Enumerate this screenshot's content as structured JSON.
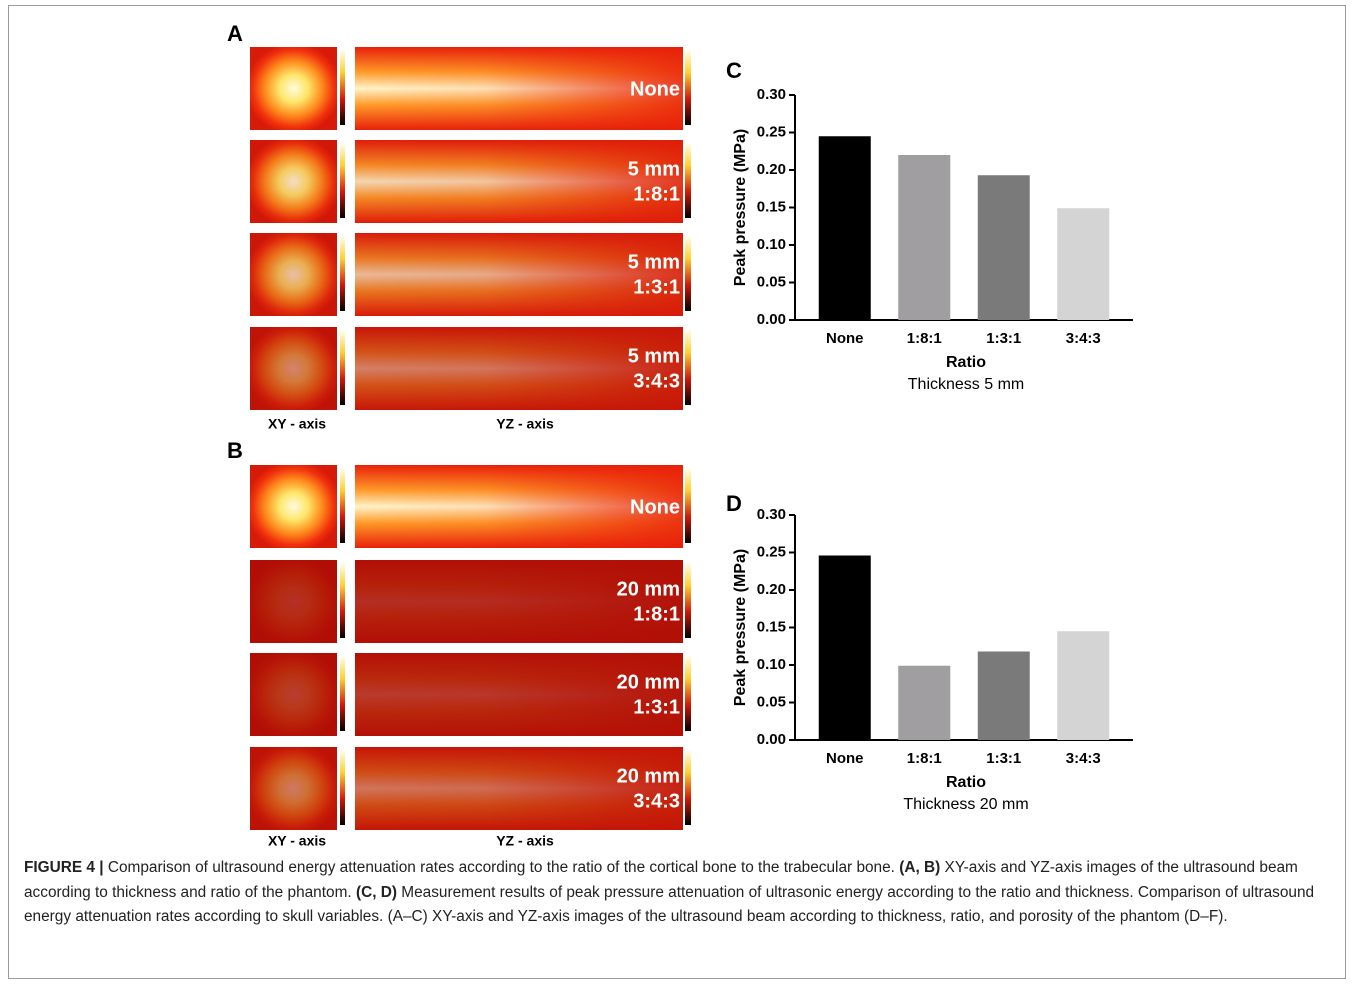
{
  "panels": {
    "A": {
      "letter": "A",
      "rows": [
        [
          "None"
        ],
        [
          "5 mm",
          "1:8:1"
        ],
        [
          "5 mm",
          "1:3:1"
        ],
        [
          "5 mm",
          "3:4:3"
        ]
      ],
      "xy_label": "XY - axis",
      "yz_label": "YZ - axis"
    },
    "B": {
      "letter": "B",
      "rows": [
        [
          "None"
        ],
        [
          "20 mm",
          "1:8:1"
        ],
        [
          "20 mm",
          "1:3:1"
        ],
        [
          "20 mm",
          "3:4:3"
        ]
      ],
      "xy_label": "XY - axis",
      "yz_label": "YZ - axis"
    }
  },
  "chart_data": [
    {
      "type": "bar",
      "panel": "C",
      "ylabel": "Peak pressure (MPa)",
      "xlabel": "Ratio",
      "subtitle": "Thickness 5 mm",
      "categories": [
        "None",
        "1:8:1",
        "1:3:1",
        "3:4:3"
      ],
      "values": [
        0.245,
        0.22,
        0.193,
        0.149
      ],
      "colors": [
        "#000000",
        "#a09ea0",
        "#7a7a7a",
        "#d4d4d4"
      ],
      "ylim": [
        0,
        0.3
      ],
      "yticks": [
        {
          "value": 0,
          "label": "0.00"
        },
        {
          "value": 0.05,
          "label": "0.05"
        },
        {
          "value": 0.1,
          "label": "0.10"
        },
        {
          "value": 0.15,
          "label": "0.15"
        },
        {
          "value": 0.2,
          "label": "0.20"
        },
        {
          "value": 0.25,
          "label": "0.25"
        },
        {
          "value": 0.3,
          "label": "0.30"
        }
      ]
    },
    {
      "type": "bar",
      "panel": "D",
      "ylabel": "Peak pressure (MPa)",
      "xlabel": "Ratio",
      "subtitle": "Thickness 20 mm",
      "categories": [
        "None",
        "1:8:1",
        "1:3:1",
        "3:4:3"
      ],
      "values": [
        0.246,
        0.099,
        0.118,
        0.145
      ],
      "colors": [
        "#000000",
        "#a09ea0",
        "#7a7a7a",
        "#d4d4d4"
      ],
      "ylim": [
        0,
        0.3
      ],
      "yticks": [
        {
          "value": 0,
          "label": "0.00"
        },
        {
          "value": 0.05,
          "label": "0.05"
        },
        {
          "value": 0.1,
          "label": "0.10"
        },
        {
          "value": 0.15,
          "label": "0.15"
        },
        {
          "value": 0.2,
          "label": "0.20"
        },
        {
          "value": 0.25,
          "label": "0.25"
        },
        {
          "value": 0.3,
          "label": "0.30"
        }
      ]
    }
  ],
  "caption": {
    "label": "FIGURE 4 |",
    "segments": [
      " Comparison of ultrasound energy attenuation rates according to the ratio of the cortical bone to the trabecular bone. ",
      "(A, B)",
      " XY-axis and YZ-axis images of the ultrasound beam according to thickness and ratio of the phantom. ",
      "(C, D)",
      " Measurement results of peak pressure attenuation of ultrasonic energy according to the ratio and thickness. Comparison of ultrasound energy attenuation rates according to skull variables. (A–C) XY-axis and YZ-axis images of the ultrasound beam according to thickness, ratio, and porosity of the phantom (D–F)."
    ]
  }
}
